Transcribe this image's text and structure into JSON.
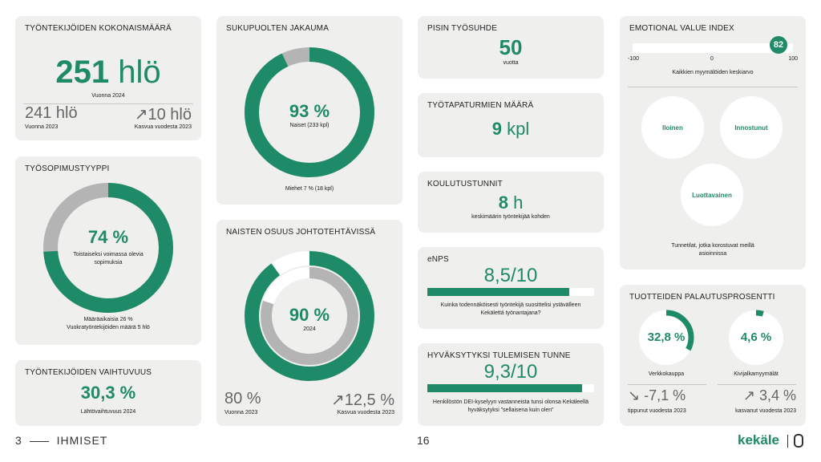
{
  "colors": {
    "accent": "#1f8a68",
    "grey": "#b4b4b4",
    "card": "#efefed"
  },
  "total": {
    "title": "Työntekijöiden kokonaismäärä",
    "value": "251",
    "unit": "hlö",
    "caption": "Vuonna 2024",
    "prev_value": "241 hlö",
    "prev_caption": "Vuonna 2023",
    "growth_value": "↗10 hlö",
    "growth_caption": "Kasvua vuodesta 2023"
  },
  "contract": {
    "title": "Työsopimustyyppi",
    "value": "74 %",
    "fraction": 0.74,
    "label": "Toistaiseksi voimassa olevia sopimuksia",
    "note1": "Määräaikaisia 26 %",
    "note2": "Vuokratyöntekijöiden määrä 5 hlö"
  },
  "turnover": {
    "title": "Työntekijöiden vaihtuvuus",
    "value": "30,3 %",
    "caption": "Lähtövaihtuvuus 2024"
  },
  "gender": {
    "title": "Sukupuolten jakauma",
    "value": "93 %",
    "fraction": 0.93,
    "label": "Naiset (233 kpl)",
    "note": "Miehet 7 % (18 kpl)"
  },
  "women_mgmt": {
    "title": "Naisten osuus johtotehtävissä",
    "value": "90 %",
    "fraction": 0.9,
    "inner_fraction": 0.8,
    "label": "2024",
    "prev_value": "80 %",
    "prev_caption": "Vuonna 2023",
    "growth_value": "↗12,5 %",
    "growth_caption": "Kasvua vuodesta 2023"
  },
  "longest": {
    "title": "Pisin työsuhde",
    "value": "50",
    "caption": "vuotta"
  },
  "accidents": {
    "title": "Työtapaturmien määrä",
    "value": "9",
    "unit": "kpl"
  },
  "training": {
    "title": "Koulutustunnit",
    "value": "8",
    "unit": "h",
    "caption": "keskimäärin työntekijää kohden"
  },
  "enps": {
    "title": "eNPS",
    "value": "8,5/10",
    "fraction": 0.85,
    "caption": "Kuinka todennäköisesti työntekijä suosittelisi ystävälleen Kekälettä työnantajana?"
  },
  "acceptance": {
    "title": "Hyväksytyksi tulemisen tunne",
    "value": "9,3/10",
    "fraction": 0.93,
    "caption": "Henkilöstön DEI-kyselyyn vastanneista tunsi olonsa Kekäleellä hyväksytyksi ”sellaisena kuin olen”"
  },
  "evi": {
    "title": "Emotional Value Index",
    "score": "82",
    "score_value": 82,
    "min": "-100",
    "mid": "0",
    "max": "100",
    "caption": "Kaikkien myymälöiden keskiarvo",
    "emotions": [
      "Iloinen",
      "Innostunut",
      "Luottavainen"
    ],
    "note": "Tunnetilat, jotka korostuvat meillä asioinnissa"
  },
  "returns": {
    "title": "Tuotteiden palautusprosentti",
    "online_value": "32,8 %",
    "online_fraction": 0.328,
    "online_label": "Verkkokauppa",
    "store_value": "4,6 %",
    "store_fraction": 0.046,
    "store_label": "Kivijalkamyymälät",
    "online_change": "↘ -7,1 %",
    "online_change_caption": "tippunut vuodesta 2023",
    "store_change": "↗ 3,4 %",
    "store_change_caption": "kasvanut vuodesta 2023"
  },
  "footer": {
    "page_num": "3",
    "section": "IHMISET",
    "page": "16",
    "brand": "kekäle"
  }
}
